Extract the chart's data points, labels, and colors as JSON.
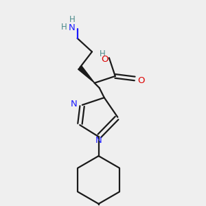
{
  "bg_color": "#efefef",
  "bond_color": "#1a1a1a",
  "N_color": "#1a1aff",
  "O_color": "#dd0000",
  "H_color": "#4a8a8a",
  "line_width": 1.6,
  "fig_size": [
    3.0,
    3.0
  ],
  "dpi": 100,
  "xlim": [
    0,
    10
  ],
  "ylim": [
    0,
    10
  ]
}
